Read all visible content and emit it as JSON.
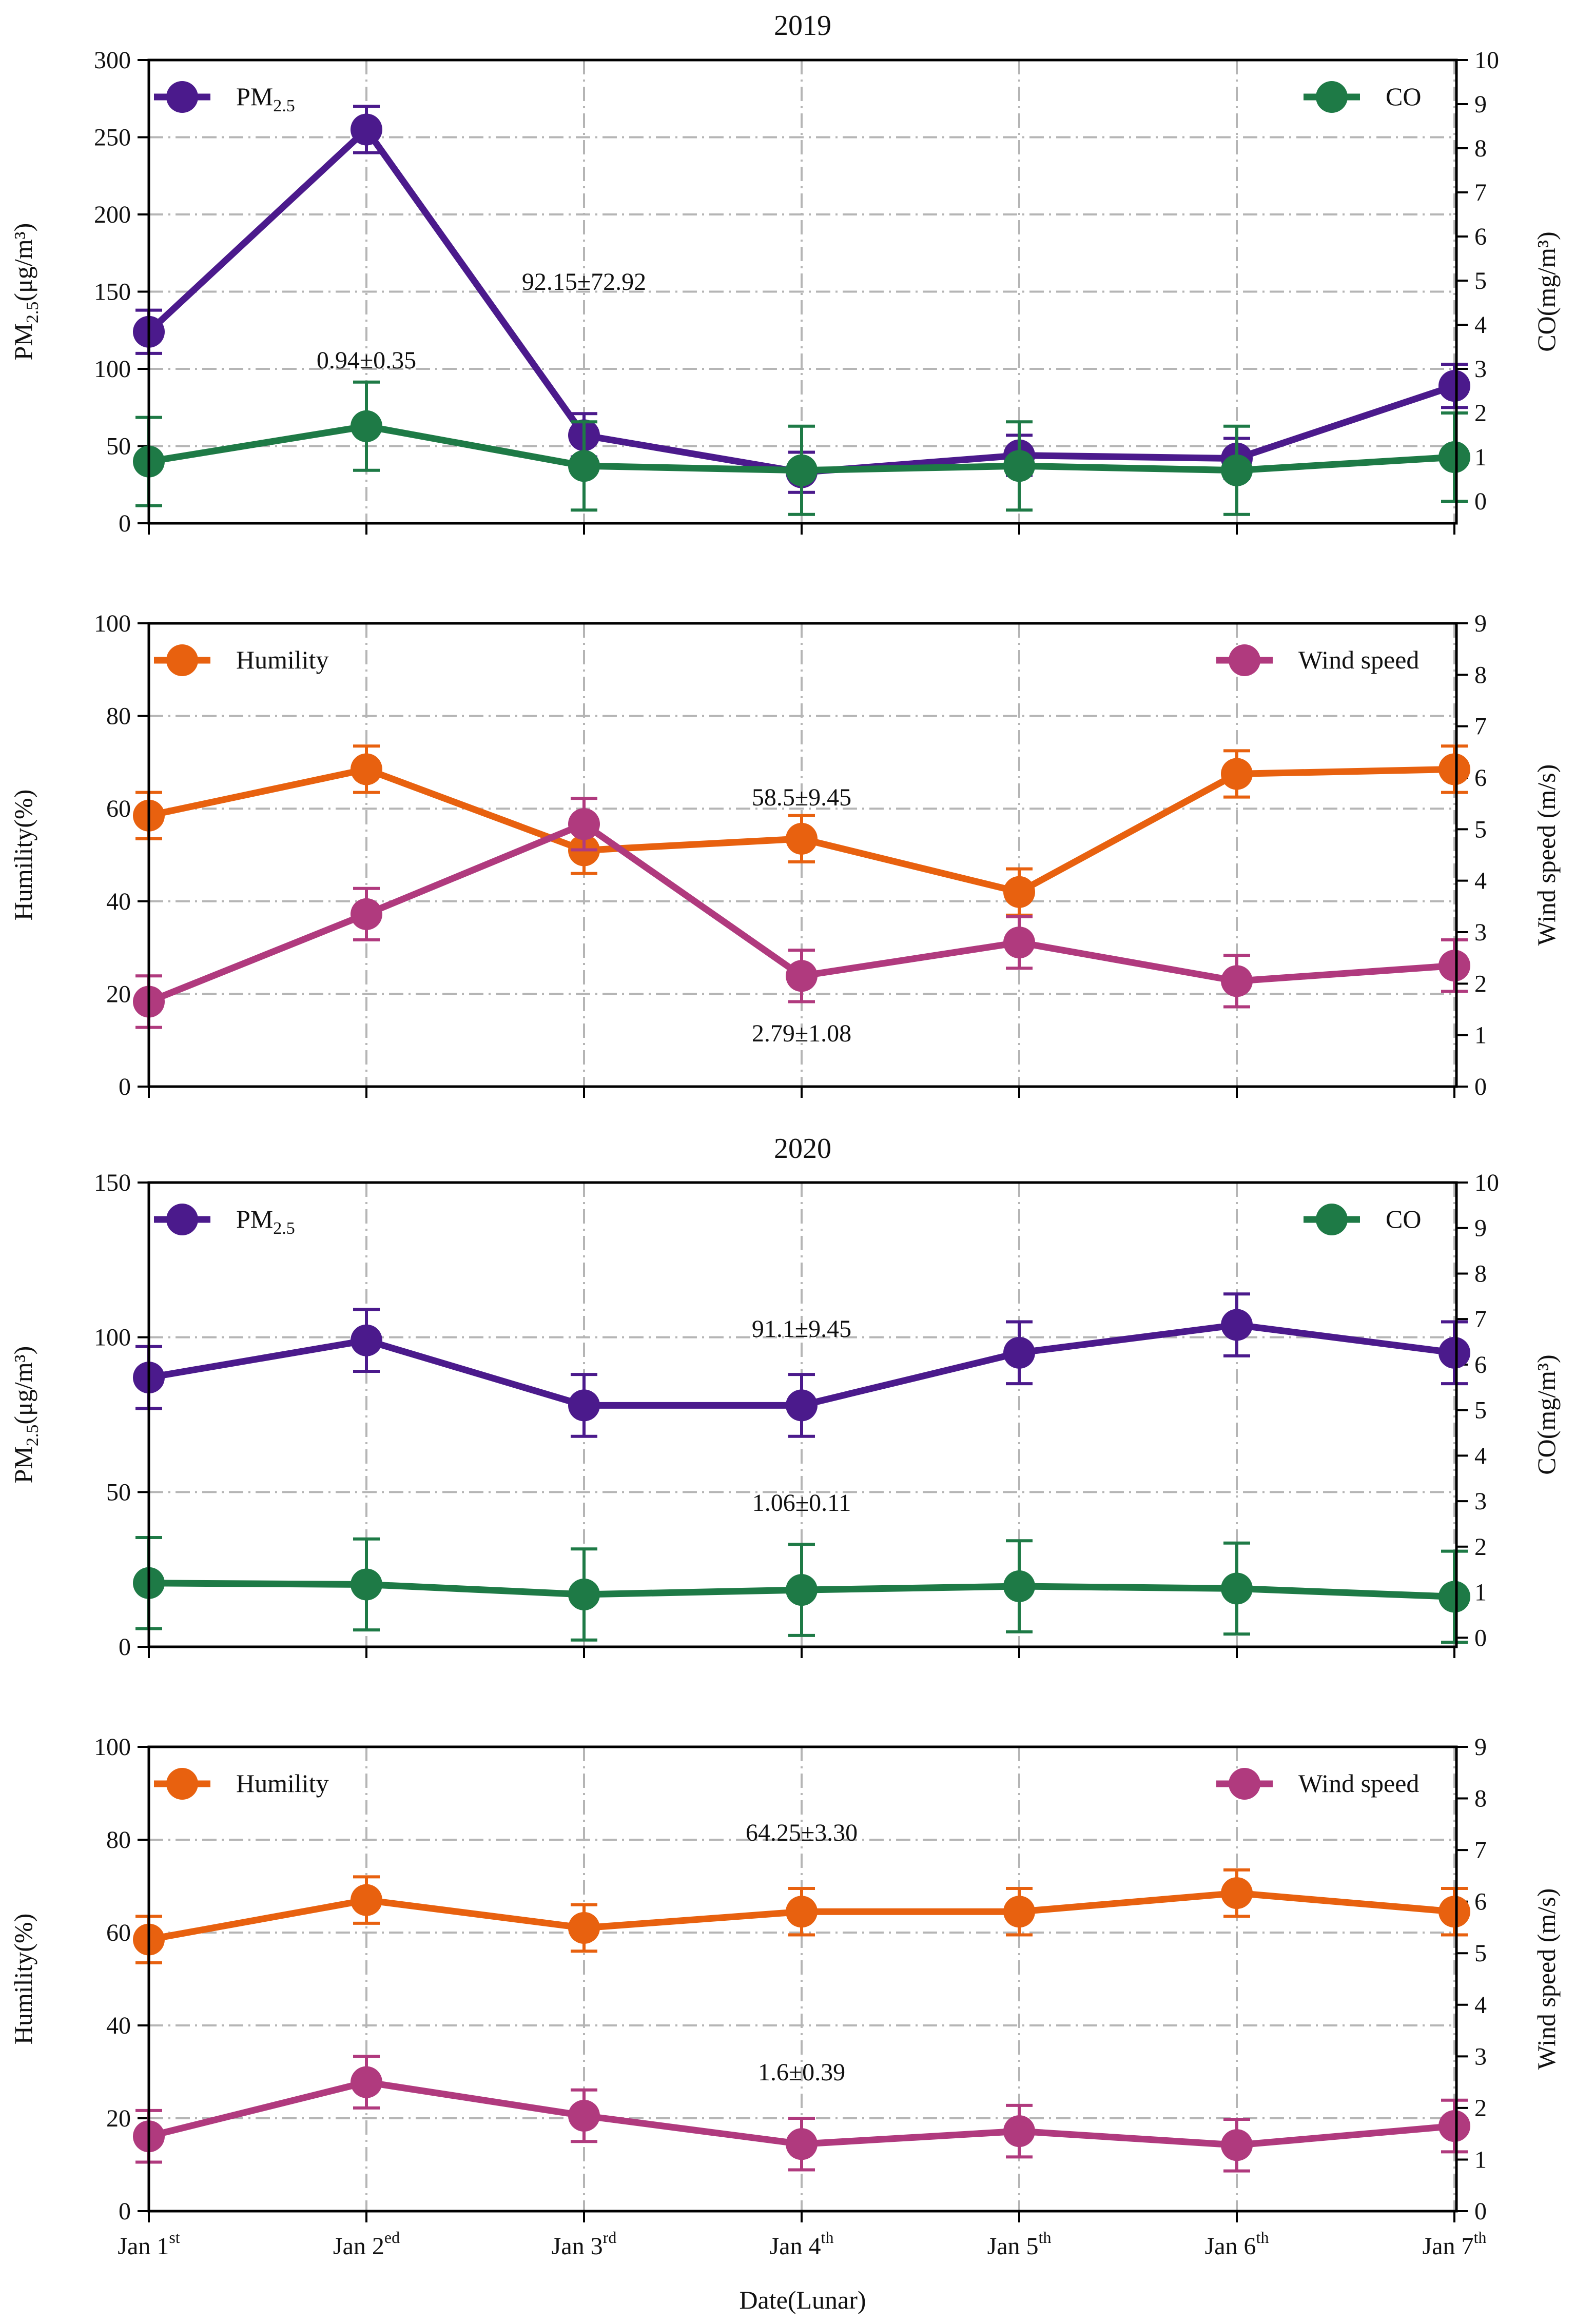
{
  "xlabel": "Date(Lunar)",
  "categories": [
    {
      "main": "Jan 1",
      "sup": "st"
    },
    {
      "main": "Jan 2",
      "sup": "ed"
    },
    {
      "main": "Jan 3",
      "sup": "rd"
    },
    {
      "main": "Jan 4",
      "sup": "th"
    },
    {
      "main": "Jan 5",
      "sup": "th"
    },
    {
      "main": "Jan 6",
      "sup": "th"
    },
    {
      "main": "Jan 7",
      "sup": "th"
    }
  ],
  "chart_data": [
    {
      "type": "line",
      "title": "2019",
      "ylabel_left": {
        "main": "PM",
        "sub": "2.5",
        "rest": "(μg/m³)"
      },
      "ylabel_right": "CO(mg/m³)",
      "ylim_left": [
        0,
        300
      ],
      "yticks_left": [
        0,
        50,
        100,
        150,
        200,
        250,
        300
      ],
      "ylim_right": [
        -0.5,
        10
      ],
      "yticks_right": [
        0,
        1,
        2,
        3,
        4,
        5,
        6,
        7,
        8,
        9,
        10
      ],
      "series": [
        {
          "name": "PM2.5",
          "legend": {
            "main": "PM",
            "sub": "2.5"
          },
          "axis": "left",
          "color": "#4b1a8c",
          "legend_pos": "top-left",
          "values": [
            124,
            255,
            57,
            33,
            44,
            42,
            89
          ],
          "errors": [
            14,
            15,
            14,
            13,
            13,
            13,
            14
          ]
        },
        {
          "name": "CO",
          "legend": {
            "main": "CO"
          },
          "axis": "right",
          "color": "#1e7a46",
          "legend_pos": "top-right",
          "values": [
            0.9,
            1.7,
            0.8,
            0.7,
            0.8,
            0.7,
            1.0
          ],
          "errors": [
            1.0,
            1.0,
            1.0,
            1.0,
            1.0,
            1.0,
            1.0
          ]
        }
      ],
      "annotations": [
        "92.15±72.92",
        "0.94±0.35"
      ]
    },
    {
      "type": "line",
      "title": "",
      "ylabel_left": {
        "main": "Humility(%)"
      },
      "ylabel_right": "Wind speed (m/s)",
      "ylim_left": [
        0,
        100
      ],
      "yticks_left": [
        0,
        20,
        40,
        60,
        80,
        100
      ],
      "ylim_right": [
        0,
        9
      ],
      "yticks_right": [
        0,
        1,
        2,
        3,
        4,
        5,
        6,
        7,
        8,
        9
      ],
      "series": [
        {
          "name": "Humility",
          "legend": {
            "main": "Humility"
          },
          "axis": "left",
          "color": "#e8610f",
          "legend_pos": "top-left",
          "values": [
            58.5,
            68.5,
            51,
            53.5,
            42,
            67.5,
            68.5
          ],
          "errors": [
            5,
            5,
            5,
            5,
            5,
            5,
            5
          ]
        },
        {
          "name": "Wind speed",
          "legend": {
            "main": "Wind speed"
          },
          "axis": "right",
          "color": "#b03a7e",
          "legend_pos": "top-right",
          "values": [
            1.65,
            3.35,
            5.1,
            2.15,
            2.8,
            2.05,
            2.35
          ],
          "errors": [
            0.5,
            0.5,
            0.5,
            0.5,
            0.5,
            0.5,
            0.5
          ]
        }
      ],
      "annotations": [
        "58.5±9.45",
        "2.79±1.08"
      ]
    },
    {
      "type": "line",
      "title": "2020",
      "ylabel_left": {
        "main": "PM",
        "sub": "2.5",
        "rest": "(μg/m³)"
      },
      "ylabel_right": "CO(mg/m³)",
      "ylim_left": [
        0,
        150
      ],
      "yticks_left": [
        0,
        50,
        100,
        150
      ],
      "ylim_right": [
        -0.2,
        10
      ],
      "yticks_right": [
        0,
        1,
        2,
        3,
        4,
        5,
        6,
        7,
        8,
        9,
        10
      ],
      "series": [
        {
          "name": "PM2.5",
          "legend": {
            "main": "PM",
            "sub": "2.5"
          },
          "axis": "left",
          "color": "#4b1a8c",
          "legend_pos": "top-left",
          "values": [
            87,
            99,
            78,
            78,
            95,
            104,
            95
          ],
          "errors": [
            10,
            10,
            10,
            10,
            10,
            10,
            10
          ]
        },
        {
          "name": "CO",
          "legend": {
            "main": "CO"
          },
          "axis": "right",
          "color": "#1e7a46",
          "legend_pos": "top-right",
          "values": [
            1.2,
            1.17,
            0.95,
            1.05,
            1.13,
            1.08,
            0.9
          ],
          "errors": [
            1.0,
            1.0,
            1.0,
            1.0,
            1.0,
            1.0,
            1.0
          ]
        }
      ],
      "annotations": [
        "91.1±9.45",
        "1.06±0.11"
      ]
    },
    {
      "type": "line",
      "title": "",
      "ylabel_left": {
        "main": "Humility(%)"
      },
      "ylabel_right": "Wind speed (m/s)",
      "ylim_left": [
        0,
        100
      ],
      "yticks_left": [
        0,
        20,
        40,
        60,
        80,
        100
      ],
      "ylim_right": [
        0,
        9
      ],
      "yticks_right": [
        0,
        1,
        2,
        3,
        4,
        5,
        6,
        7,
        8,
        9
      ],
      "series": [
        {
          "name": "Humility",
          "legend": {
            "main": "Humility"
          },
          "axis": "left",
          "color": "#e8610f",
          "legend_pos": "top-left",
          "values": [
            58.5,
            67,
            61,
            64.5,
            64.5,
            68.5,
            64.5
          ],
          "errors": [
            5,
            5,
            5,
            5,
            5,
            5,
            5
          ]
        },
        {
          "name": "Wind speed",
          "legend": {
            "main": "Wind speed"
          },
          "axis": "right",
          "color": "#b03a7e",
          "legend_pos": "top-right",
          "values": [
            1.45,
            2.5,
            1.85,
            1.3,
            1.55,
            1.28,
            1.65
          ],
          "errors": [
            0.5,
            0.5,
            0.5,
            0.5,
            0.5,
            0.5,
            0.5
          ]
        }
      ],
      "annotations": [
        "64.25±3.30",
        "1.6±0.39"
      ]
    }
  ]
}
